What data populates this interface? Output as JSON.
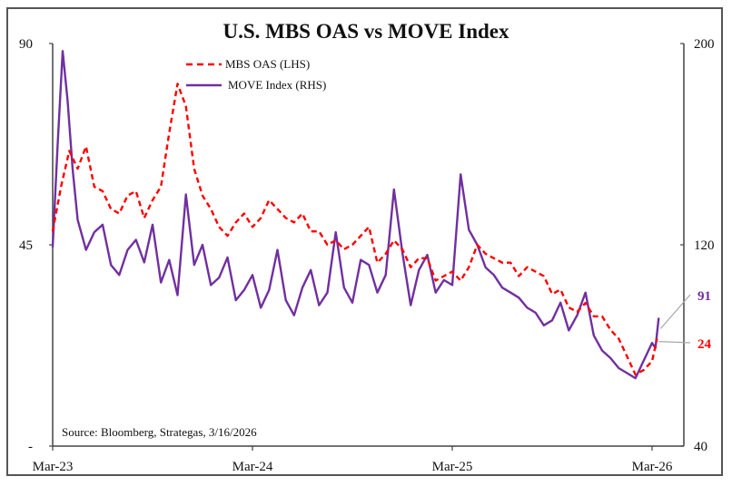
{
  "chart_data": {
    "type": "line",
    "title": "U.S. MBS OAS vs MOVE Index",
    "xlabel": "",
    "ylabel_left": "",
    "ylabel_right": "",
    "x_ticks": [
      "Mar-23",
      "Mar-24",
      "Mar-25",
      "Mar-26"
    ],
    "x_range_months_from_mar23": [
      0,
      36.6
    ],
    "y_left": {
      "range": [
        0,
        90
      ],
      "ticks": [
        {
          "value": 90,
          "label": "90"
        },
        {
          "value": 45,
          "label": "45"
        },
        {
          "value": 0,
          "label": "-"
        }
      ]
    },
    "y_right": {
      "range": [
        40,
        200
      ],
      "ticks": [
        {
          "value": 200,
          "label": "200"
        },
        {
          "value": 120,
          "label": "120"
        },
        {
          "value": 40,
          "label": "40"
        }
      ]
    },
    "grid": false,
    "legend_position": "top-left",
    "source": "Source: Bloomberg, Strategas, 3/16/2026",
    "series": [
      {
        "name": "MBS OAS (LHS)",
        "axis": "left",
        "color": "#ff0000",
        "style": "dashed",
        "last_value_label": "24",
        "x": [
          0,
          0.5,
          1,
          1.5,
          2,
          2.5,
          3,
          3.5,
          4,
          4.5,
          5,
          5.5,
          6,
          6.5,
          7,
          7.5,
          8,
          8.5,
          9,
          9.5,
          10,
          10.5,
          11,
          11.5,
          12,
          12.5,
          13,
          13.5,
          14,
          14.5,
          15,
          15.5,
          16,
          16.5,
          17,
          17.5,
          18,
          18.5,
          19,
          19.5,
          20,
          20.5,
          21,
          21.5,
          22,
          22.5,
          23,
          23.5,
          24,
          24.5,
          25,
          25.5,
          26,
          26.5,
          27,
          27.5,
          28,
          28.5,
          29,
          29.5,
          30,
          30.5,
          31,
          31.5,
          32,
          32.5,
          33,
          33.5,
          34,
          34.5,
          35,
          35.5,
          36,
          36.3
        ],
        "values": [
          48,
          58,
          66,
          62,
          67,
          58,
          57,
          53,
          52,
          56,
          57,
          51,
          55,
          58,
          70,
          81,
          76,
          62,
          56,
          53,
          49,
          47,
          50,
          52,
          49,
          51,
          55,
          53,
          51,
          50,
          52,
          48,
          48,
          45,
          46,
          44,
          45,
          47,
          49,
          41,
          43,
          46,
          44,
          40,
          42,
          42,
          37,
          38,
          39,
          37,
          40,
          45,
          43,
          42,
          41,
          41,
          38,
          40,
          39,
          38,
          34,
          35,
          31,
          30,
          32,
          29,
          29,
          26,
          24,
          20,
          16,
          17,
          19,
          24
        ]
      },
      {
        "name": "MOVE Index (RHS)",
        "axis": "right",
        "color": "#7030a0",
        "style": "solid",
        "last_value_label": "91",
        "x": [
          0,
          0.3,
          0.6,
          0.9,
          1.2,
          1.5,
          2,
          2.5,
          3,
          3.5,
          4,
          4.5,
          5,
          5.5,
          6,
          6.5,
          7,
          7.5,
          8,
          8.5,
          9,
          9.5,
          10,
          10.5,
          11,
          11.5,
          12,
          12.5,
          13,
          13.5,
          14,
          14.5,
          15,
          15.5,
          16,
          16.5,
          17,
          17.5,
          18,
          18.5,
          19,
          19.5,
          20,
          20.5,
          21,
          21.5,
          22,
          22.5,
          23,
          23.5,
          24,
          24.5,
          25,
          25.5,
          26,
          26.5,
          27,
          27.5,
          28,
          28.5,
          29,
          29.5,
          30,
          30.5,
          31,
          31.5,
          32,
          32.5,
          33,
          33.5,
          34,
          34.5,
          35,
          35.5,
          36,
          36.2,
          36.4
        ],
        "values": [
          119,
          160,
          197,
          177,
          150,
          130,
          118,
          125,
          128,
          112,
          108,
          118,
          122,
          113,
          128,
          105,
          114,
          100,
          140,
          112,
          120,
          104,
          107,
          115,
          98,
          102,
          108,
          95,
          102,
          118,
          98,
          92,
          103,
          110,
          96,
          101,
          125,
          103,
          97,
          114,
          112,
          101,
          108,
          142,
          117,
          96,
          110,
          116,
          101,
          106,
          104,
          148,
          126,
          120,
          111,
          108,
          103,
          101,
          99,
          95,
          93,
          88,
          90,
          97,
          86,
          92,
          101,
          84,
          78,
          75,
          71,
          69,
          67,
          74,
          81,
          79,
          91
        ]
      }
    ]
  },
  "legend": {
    "mbs_label": "MBS OAS (LHS)",
    "move_label": "MOVE Index (RHS)"
  },
  "callouts": {
    "move_value": "91",
    "mbs_value": "24"
  },
  "colors": {
    "mbs": "#ff0000",
    "move": "#7030a0",
    "axis": "#444444",
    "callout_line": "#a6a6a6"
  }
}
